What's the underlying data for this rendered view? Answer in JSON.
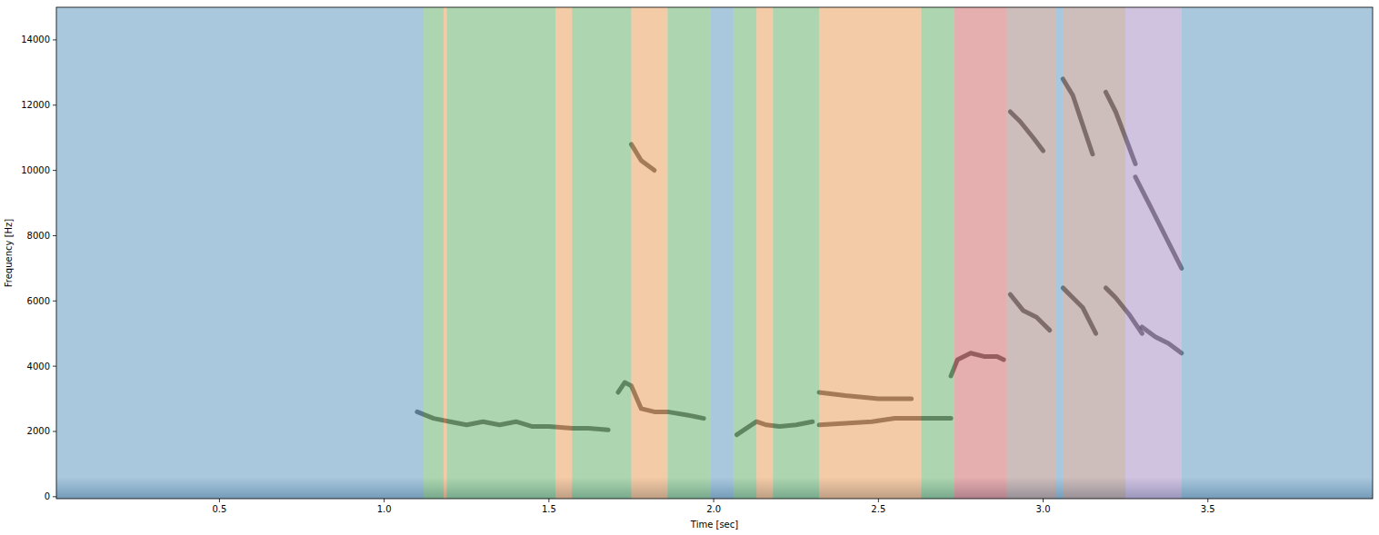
{
  "chart_data": {
    "type": "spectrogram",
    "x_label": "Time [sec]",
    "y_label": "Frequency [Hz]",
    "xlim": [
      0.005,
      4.0
    ],
    "ylim": [
      -60,
      15000
    ],
    "xticks": [
      0.5,
      {
        "value": 1,
        "label": "1.0"
      },
      1.5,
      {
        "value": 2,
        "label": "2.0"
      },
      2.5,
      {
        "value": 3,
        "label": "3.0"
      },
      3.5
    ],
    "yticks": [
      0,
      2000,
      4000,
      6000,
      8000,
      10000,
      12000,
      14000
    ],
    "segments": [
      {
        "start": 0.005,
        "end": 1.12,
        "color": "#1f77b4"
      },
      {
        "start": 1.12,
        "end": 1.18,
        "color": "#2ca02c"
      },
      {
        "start": 1.18,
        "end": 1.19,
        "color": "#ff7f0e"
      },
      {
        "start": 1.19,
        "end": 1.52,
        "color": "#2ca02c"
      },
      {
        "start": 1.52,
        "end": 1.57,
        "color": "#ff7f0e"
      },
      {
        "start": 1.57,
        "end": 1.75,
        "color": "#2ca02c"
      },
      {
        "start": 1.75,
        "end": 1.76,
        "color": "#ff7f0e"
      },
      {
        "start": 1.76,
        "end": 1.86,
        "color": "#ff7f0e"
      },
      {
        "start": 1.86,
        "end": 1.99,
        "color": "#2ca02c"
      },
      {
        "start": 1.99,
        "end": 2.06,
        "color": "#1f77b4"
      },
      {
        "start": 2.06,
        "end": 2.13,
        "color": "#2ca02c"
      },
      {
        "start": 2.13,
        "end": 2.18,
        "color": "#ff7f0e"
      },
      {
        "start": 2.18,
        "end": 2.32,
        "color": "#2ca02c"
      },
      {
        "start": 2.32,
        "end": 2.63,
        "color": "#ff7f0e"
      },
      {
        "start": 2.63,
        "end": 2.73,
        "color": "#2ca02c"
      },
      {
        "start": 2.73,
        "end": 2.89,
        "color": "#d62728"
      },
      {
        "start": 2.89,
        "end": 3.04,
        "color": "#8c564b"
      },
      {
        "start": 3.04,
        "end": 3.06,
        "color": "#1f77b4"
      },
      {
        "start": 3.06,
        "end": 3.25,
        "color": "#8c564b"
      },
      {
        "start": 3.25,
        "end": 3.42,
        "color": "#9467bd"
      },
      {
        "start": 3.42,
        "end": 4.0,
        "color": "#1f77b4"
      }
    ],
    "traces": [
      {
        "x": [
          1.1,
          1.15,
          1.2,
          1.25,
          1.3,
          1.35,
          1.4,
          1.45,
          1.5,
          1.57,
          1.62,
          1.68
        ],
        "y": [
          2600,
          2400,
          2300,
          2200,
          2300,
          2200,
          2300,
          2150,
          2150,
          2100,
          2100,
          2050
        ]
      },
      {
        "x": [
          1.71,
          1.73,
          1.75,
          1.78,
          1.82,
          1.86,
          1.92,
          1.97
        ],
        "y": [
          3200,
          3500,
          3400,
          2700,
          2600,
          2600,
          2500,
          2400
        ]
      },
      {
        "x": [
          2.07,
          2.1,
          2.13,
          2.16,
          2.2,
          2.25,
          2.3
        ],
        "y": [
          1900,
          2100,
          2300,
          2200,
          2150,
          2200,
          2300
        ]
      },
      {
        "x": [
          2.32,
          2.4,
          2.48,
          2.55,
          2.62,
          2.68,
          2.72
        ],
        "y": [
          2200,
          2250,
          2300,
          2400,
          2400,
          2400,
          2400
        ]
      },
      {
        "x": [
          2.32,
          2.4,
          2.5,
          2.6
        ],
        "y": [
          3200,
          3100,
          3000,
          3000
        ]
      },
      {
        "x": [
          2.72,
          2.74,
          2.78,
          2.82,
          2.86,
          2.88
        ],
        "y": [
          3700,
          4200,
          4400,
          4300,
          4300,
          4200
        ]
      },
      {
        "x": [
          2.9,
          2.94,
          2.98,
          3.02
        ],
        "y": [
          6200,
          5700,
          5500,
          5100
        ]
      },
      {
        "x": [
          3.06,
          3.09,
          3.12,
          3.16
        ],
        "y": [
          6400,
          6100,
          5800,
          5000
        ]
      },
      {
        "x": [
          3.19,
          3.22,
          3.26,
          3.3
        ],
        "y": [
          6400,
          6100,
          5600,
          5000
        ]
      },
      {
        "x": [
          3.3,
          3.34,
          3.38,
          3.42
        ],
        "y": [
          5200,
          4900,
          4700,
          4400
        ]
      },
      {
        "x": [
          2.9,
          2.93,
          2.97,
          3.0
        ],
        "y": [
          11800,
          11500,
          11000,
          10600
        ]
      },
      {
        "x": [
          3.06,
          3.09,
          3.12,
          3.15
        ],
        "y": [
          12800,
          12300,
          11400,
          10500
        ]
      },
      {
        "x": [
          3.19,
          3.22,
          3.25,
          3.28
        ],
        "y": [
          12400,
          11800,
          11000,
          10200
        ]
      },
      {
        "x": [
          3.28,
          3.33,
          3.38,
          3.42
        ],
        "y": [
          9800,
          8800,
          7800,
          7000
        ]
      },
      {
        "x": [
          1.75,
          1.78,
          1.82
        ],
        "y": [
          10800,
          10300,
          10000
        ]
      }
    ]
  }
}
